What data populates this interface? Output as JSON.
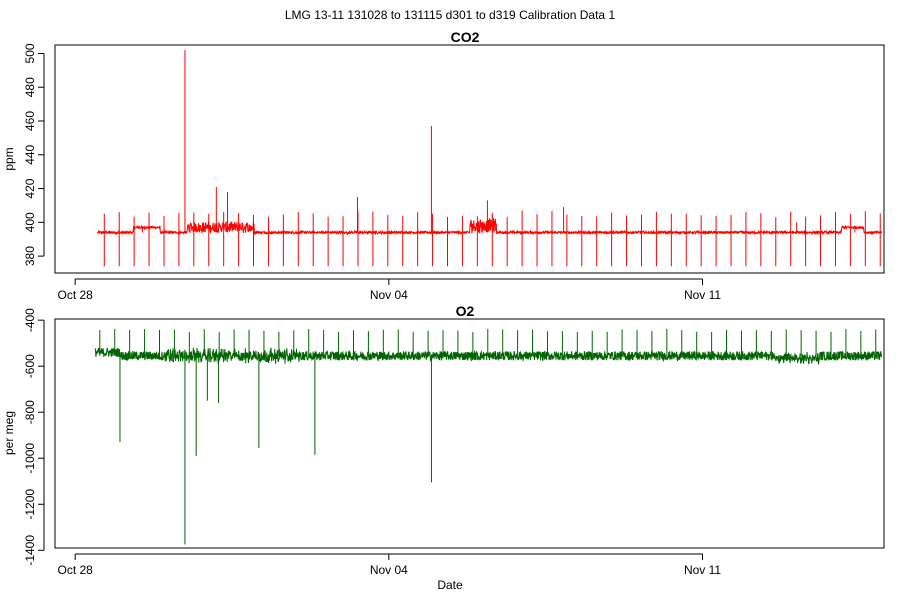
{
  "figure_title": "LMG   13-11    131028 to 131115    d301 to d319   Calibration Data 1",
  "chart_data": [
    {
      "type": "line",
      "title": "CO2",
      "xlabel": "",
      "ylabel": "ppm",
      "color": "#ff0000",
      "x_tick_labels": [
        "Oct 28",
        "Nov 04",
        "Nov 11"
      ],
      "x_tick_days": [
        301,
        308,
        315
      ],
      "xlim": [
        300.55,
        319.05
      ],
      "y_ticks": [
        380,
        400,
        420,
        440,
        460,
        480,
        500
      ],
      "ylim": [
        370,
        505
      ],
      "x_range": [
        301.5,
        319.0
      ],
      "baseline": 394,
      "cal_spikes": {
        "start": 301.65,
        "interval": 0.333,
        "low": 374,
        "high": 405
      },
      "events": [
        {
          "x": 302.5,
          "y": 397
        },
        {
          "x": 303.45,
          "y": 502
        },
        {
          "x": 304.15,
          "y": 421
        },
        {
          "x": 304.4,
          "y": 418
        },
        {
          "x": 307.3,
          "y": 415
        },
        {
          "x": 308.95,
          "y": 457
        },
        {
          "x": 310.2,
          "y": 413
        },
        {
          "x": 311.9,
          "y": 409
        },
        {
          "x": 317.1,
          "y": 400
        },
        {
          "x": 318.4,
          "y": 398
        }
      ]
    },
    {
      "type": "line",
      "title": "O2",
      "xlabel": "Date",
      "ylabel": "per meg",
      "color": "#006400",
      "x_tick_labels": [
        "Oct 28",
        "Nov 04",
        "Nov 11"
      ],
      "x_tick_days": [
        301,
        308,
        315
      ],
      "xlim": [
        300.55,
        319.05
      ],
      "y_ticks": [
        -400,
        -600,
        -800,
        -1000,
        -1200,
        -1400
      ],
      "ylim": [
        -1390,
        -395
      ],
      "x_range": [
        301.45,
        319.0
      ],
      "baseline": -555,
      "cal_spikes": {
        "start": 301.55,
        "interval": 0.333,
        "high": -445
      },
      "events": [
        {
          "x": 302.0,
          "y": -930
        },
        {
          "x": 303.45,
          "y": -1375
        },
        {
          "x": 303.7,
          "y": -990
        },
        {
          "x": 305.1,
          "y": -955
        },
        {
          "x": 306.35,
          "y": -985
        },
        {
          "x": 308.95,
          "y": -1105
        },
        {
          "x": 304.2,
          "y": -760
        },
        {
          "x": 303.95,
          "y": -750
        }
      ]
    }
  ]
}
